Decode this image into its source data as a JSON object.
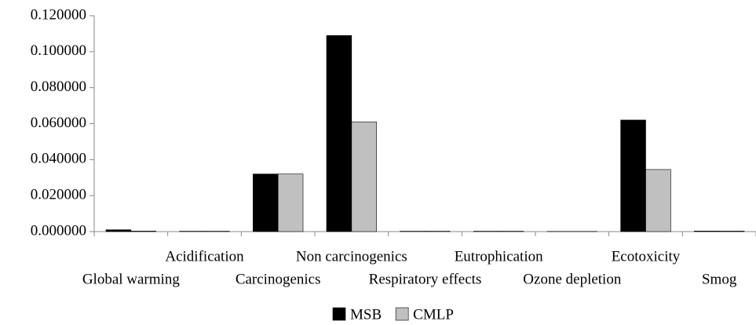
{
  "chart_data": {
    "type": "bar",
    "categories": [
      "Global warming",
      "Acidification",
      "Carcinogenics",
      "Non carcinogenics",
      "Respiratory effects",
      "Eutrophication",
      "Ozone depletion",
      "Ecotoxicity",
      "Smog"
    ],
    "series": [
      {
        "name": "MSB",
        "color": "#000000",
        "values": [
          0.001,
          0.0002,
          0.032,
          0.109,
          0.0002,
          0.0002,
          0.0001,
          0.062,
          0.0003
        ]
      },
      {
        "name": "CMLP",
        "color": "#c0c0c0",
        "values": [
          0.0003,
          0.0002,
          0.032,
          0.061,
          0.0002,
          0.0002,
          0.0001,
          0.0345,
          0.0003
        ]
      }
    ],
    "ylim": [
      0,
      0.12
    ],
    "yticks": [
      {
        "value": 0,
        "label": "0.000000"
      },
      {
        "value": 0.02,
        "label": "0.020000"
      },
      {
        "value": 0.04,
        "label": "0.040000"
      },
      {
        "value": 0.06,
        "label": "0.060000"
      },
      {
        "value": 0.08,
        "label": "0.080000"
      },
      {
        "value": 0.1,
        "label": "0.100000"
      },
      {
        "value": 0.12,
        "label": "0.120000"
      }
    ],
    "grid": false,
    "legend": "bottom"
  }
}
